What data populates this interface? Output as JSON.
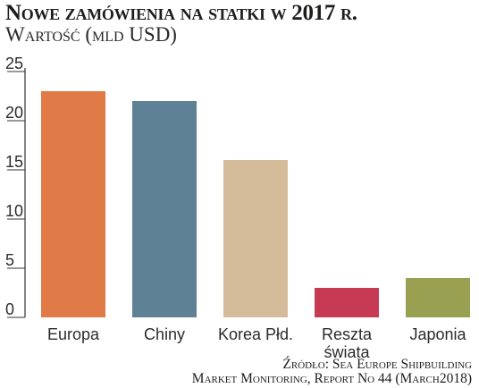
{
  "chart_data": {
    "type": "bar",
    "title": "Nowe zamówienia na statki w 2017 r.",
    "subtitle": "Wartość (mld USD)",
    "categories": [
      "Europa",
      "Chiny",
      "Korea Płd.",
      "Reszta\nświata",
      "Japonia"
    ],
    "values": [
      23,
      22,
      16,
      3,
      4
    ],
    "colors": [
      "#e07a46",
      "#5f8196",
      "#d4bc9b",
      "#c73a54",
      "#9aa052"
    ],
    "yticks": [
      0,
      5,
      10,
      15,
      20,
      25
    ],
    "ylim": [
      0,
      25
    ],
    "grid": false,
    "xlabel": "",
    "ylabel": ""
  },
  "source": {
    "line1": "Źródło: Sea Europe Shipbuilding",
    "line2": "Market Monitoring, Report No 44 (March2018)"
  }
}
